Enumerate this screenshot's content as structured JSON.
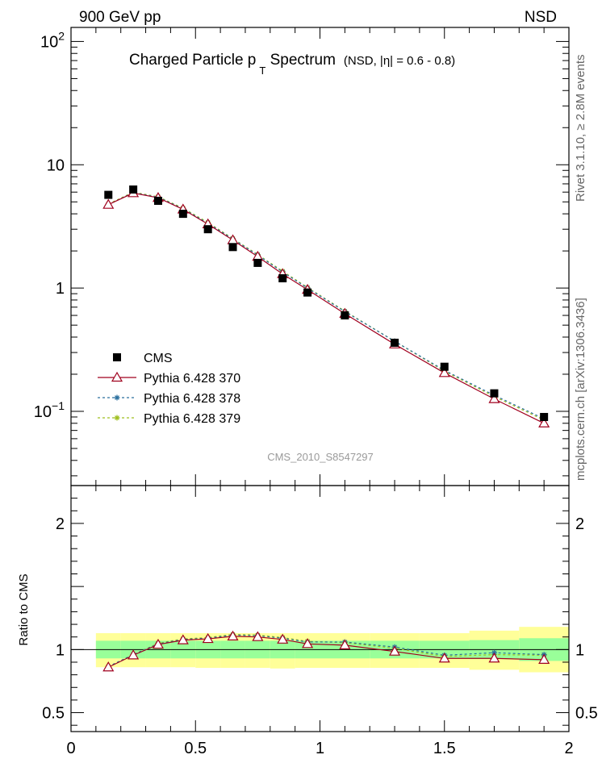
{
  "header": {
    "left": "900 GeV pp",
    "right": "NSD",
    "title_main": "Charged Particle p",
    "title_sub": "T",
    "title_tail": " Spectrum",
    "title_note": "(NSD, |η| = 0.6 - 0.8)",
    "watermark": "CMS_2010_S8547297",
    "side_rivet": "Rivet 3.1.10, ≥ 2.8M events",
    "side_mcplots": "mcplots.cern.ch [arXiv:1306.3436]"
  },
  "colors": {
    "cms": "#000000",
    "p370": "#a0001e",
    "p378": "#2a6f9e",
    "p379": "#9fbf1f",
    "band_inner": "#99ff99",
    "band_outer": "#ffff99"
  },
  "chart_data": [
    {
      "type": "scatter",
      "panel": "main",
      "title": "Charged Particle p T Spectrum (NSD, |η| = 0.6 - 0.8)",
      "xlabel": "",
      "ylabel": "",
      "xlim": [
        0,
        2
      ],
      "ylim": [
        0.025,
        130
      ],
      "yscale": "log",
      "yticks": [
        {
          "v": 0.1,
          "b": "10",
          "e": "−1"
        },
        {
          "v": 1,
          "b": "1",
          "e": ""
        },
        {
          "v": 10,
          "b": "10",
          "e": ""
        },
        {
          "v": 100,
          "b": "10",
          "e": "2"
        }
      ],
      "legend_position": "lower-left",
      "series": [
        {
          "name": "CMS",
          "style": "marker-square",
          "x": [
            0.15,
            0.25,
            0.35,
            0.45,
            0.55,
            0.65,
            0.75,
            0.85,
            0.95,
            1.1,
            1.3,
            1.5,
            1.7,
            1.9
          ],
          "y": [
            5.7,
            6.3,
            5.1,
            4.0,
            3.0,
            2.15,
            1.6,
            1.2,
            0.92,
            0.6,
            0.36,
            0.23,
            0.14,
            0.09
          ]
        },
        {
          "name": "Pythia 6.428 370",
          "style": "line-triangle",
          "x": [
            0.15,
            0.25,
            0.35,
            0.45,
            0.55,
            0.65,
            0.75,
            0.85,
            0.95,
            1.1,
            1.3,
            1.5,
            1.7,
            1.9
          ],
          "y": [
            4.75,
            5.9,
            5.4,
            4.35,
            3.3,
            2.45,
            1.8,
            1.3,
            0.97,
            0.62,
            0.35,
            0.205,
            0.126,
            0.08
          ]
        },
        {
          "name": "Pythia 6.428 378",
          "style": "dashed-star",
          "x": [
            0.15,
            0.25,
            0.35,
            0.45,
            0.55,
            0.65,
            0.75,
            0.85,
            0.95,
            1.1,
            1.3,
            1.5,
            1.7,
            1.9
          ],
          "y": [
            4.75,
            5.95,
            5.45,
            4.4,
            3.35,
            2.5,
            1.85,
            1.35,
            1.0,
            0.645,
            0.37,
            0.215,
            0.135,
            0.087
          ]
        },
        {
          "name": "Pythia 6.428 379",
          "style": "dashed-star",
          "x": [
            0.15,
            0.25,
            0.35,
            0.45,
            0.55,
            0.65,
            0.75,
            0.85,
            0.95,
            1.1,
            1.3,
            1.5,
            1.7,
            1.9
          ],
          "y": [
            4.8,
            6.0,
            5.5,
            4.45,
            3.4,
            2.52,
            1.87,
            1.37,
            1.01,
            0.65,
            0.37,
            0.212,
            0.132,
            0.085
          ]
        }
      ]
    },
    {
      "type": "line",
      "panel": "ratio",
      "xlabel": "",
      "ylabel": "Ratio to CMS",
      "xlim": [
        0,
        2
      ],
      "ylim": [
        0.35,
        2.3
      ],
      "yticks": [
        0.5,
        1,
        2
      ],
      "xticks": [
        0,
        0.5,
        1,
        1.5,
        2
      ],
      "reference": 1,
      "bands": [
        {
          "x0": 0.1,
          "x1": 0.2,
          "inner": [
            0.93,
            1.07
          ],
          "outer": [
            0.86,
            1.13
          ]
        },
        {
          "x0": 0.2,
          "x1": 0.3,
          "inner": [
            0.93,
            1.07
          ],
          "outer": [
            0.86,
            1.13
          ]
        },
        {
          "x0": 0.3,
          "x1": 0.4,
          "inner": [
            0.93,
            1.07
          ],
          "outer": [
            0.86,
            1.13
          ]
        },
        {
          "x0": 0.4,
          "x1": 0.5,
          "inner": [
            0.93,
            1.07
          ],
          "outer": [
            0.86,
            1.13
          ]
        },
        {
          "x0": 0.5,
          "x1": 0.6,
          "inner": [
            0.93,
            1.07
          ],
          "outer": [
            0.855,
            1.13
          ]
        },
        {
          "x0": 0.6,
          "x1": 0.7,
          "inner": [
            0.93,
            1.07
          ],
          "outer": [
            0.855,
            1.13
          ]
        },
        {
          "x0": 0.7,
          "x1": 0.8,
          "inner": [
            0.93,
            1.07
          ],
          "outer": [
            0.855,
            1.13
          ]
        },
        {
          "x0": 0.8,
          "x1": 0.9,
          "inner": [
            0.93,
            1.07
          ],
          "outer": [
            0.85,
            1.13
          ]
        },
        {
          "x0": 0.9,
          "x1": 1.0,
          "inner": [
            0.93,
            1.07
          ],
          "outer": [
            0.855,
            1.13
          ]
        },
        {
          "x0": 1.0,
          "x1": 1.2,
          "inner": [
            0.93,
            1.07
          ],
          "outer": [
            0.855,
            1.13
          ]
        },
        {
          "x0": 1.2,
          "x1": 1.4,
          "inner": [
            0.93,
            1.07
          ],
          "outer": [
            0.855,
            1.13
          ]
        },
        {
          "x0": 1.4,
          "x1": 1.6,
          "inner": [
            0.93,
            1.07
          ],
          "outer": [
            0.855,
            1.13
          ]
        },
        {
          "x0": 1.6,
          "x1": 1.8,
          "inner": [
            0.925,
            1.075
          ],
          "outer": [
            0.84,
            1.15
          ]
        },
        {
          "x0": 1.8,
          "x1": 2.0,
          "inner": [
            0.91,
            1.09
          ],
          "outer": [
            0.82,
            1.18
          ]
        }
      ],
      "series": [
        {
          "name": "Pythia 6.428 370",
          "x": [
            0.15,
            0.25,
            0.35,
            0.45,
            0.55,
            0.65,
            0.75,
            0.85,
            0.95,
            1.1,
            1.3,
            1.5,
            1.7,
            1.9
          ],
          "y": [
            0.86,
            0.955,
            1.04,
            1.075,
            1.085,
            1.105,
            1.1,
            1.08,
            1.045,
            1.035,
            0.985,
            0.93,
            0.93,
            0.92
          ]
        },
        {
          "name": "Pythia 6.428 378",
          "x": [
            0.15,
            0.25,
            0.35,
            0.45,
            0.55,
            0.65,
            0.75,
            0.85,
            0.95,
            1.1,
            1.3,
            1.5,
            1.7,
            1.9
          ],
          "y": [
            0.865,
            0.96,
            1.045,
            1.08,
            1.09,
            1.115,
            1.11,
            1.09,
            1.06,
            1.06,
            1.02,
            0.955,
            0.975,
            0.96
          ]
        },
        {
          "name": "Pythia 6.428 379",
          "x": [
            0.15,
            0.25,
            0.35,
            0.45,
            0.55,
            0.65,
            0.75,
            0.85,
            0.95,
            1.1,
            1.3,
            1.5,
            1.7,
            1.9
          ],
          "y": [
            0.865,
            0.96,
            1.05,
            1.085,
            1.095,
            1.12,
            1.115,
            1.095,
            1.065,
            1.055,
            1.01,
            0.945,
            0.96,
            0.955
          ]
        }
      ]
    }
  ]
}
